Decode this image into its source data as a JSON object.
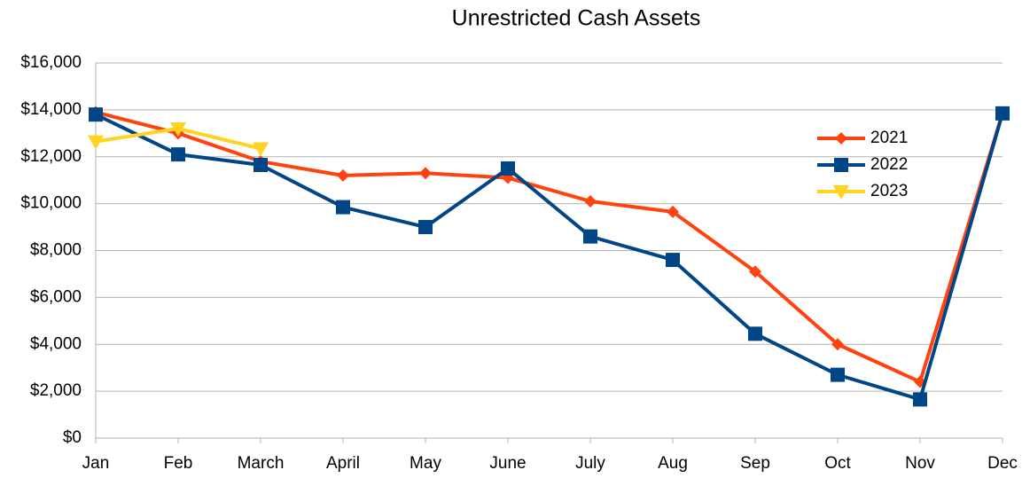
{
  "chart_data": {
    "type": "line",
    "title": "Unrestricted Cash Assets",
    "categories": [
      "Jan",
      "Feb",
      "March",
      "April",
      "May",
      "June",
      "July",
      "Aug",
      "Sep",
      "Oct",
      "Nov",
      "Dec"
    ],
    "series": [
      {
        "name": "2021",
        "color": "#ff420e",
        "marker": "diamond",
        "values": [
          13900,
          13000,
          11800,
          11200,
          11300,
          11100,
          10100,
          9650,
          7100,
          4000,
          2400,
          13850
        ]
      },
      {
        "name": "2022",
        "color": "#004586",
        "marker": "square",
        "values": [
          13800,
          12100,
          11650,
          9850,
          9000,
          11500,
          8600,
          7600,
          4450,
          2700,
          1650,
          13850
        ]
      },
      {
        "name": "2023",
        "color": "#ffd320",
        "marker": "triangle-down",
        "values": [
          12650,
          13200,
          12350,
          null,
          null,
          null,
          null,
          null,
          null,
          null,
          null,
          null
        ]
      }
    ],
    "ylim": [
      0,
      16000
    ],
    "yticks": [
      {
        "value": 0,
        "label": "$0"
      },
      {
        "value": 2000,
        "label": "$2,000"
      },
      {
        "value": 4000,
        "label": "$4,000"
      },
      {
        "value": 6000,
        "label": "$6,000"
      },
      {
        "value": 8000,
        "label": "$8,000"
      },
      {
        "value": 10000,
        "label": "$10,000"
      },
      {
        "value": 12000,
        "label": "$12,000"
      },
      {
        "value": 14000,
        "label": "$14,000"
      },
      {
        "value": 16000,
        "label": "$16,000"
      }
    ],
    "grid": true,
    "legend_position": "right"
  }
}
